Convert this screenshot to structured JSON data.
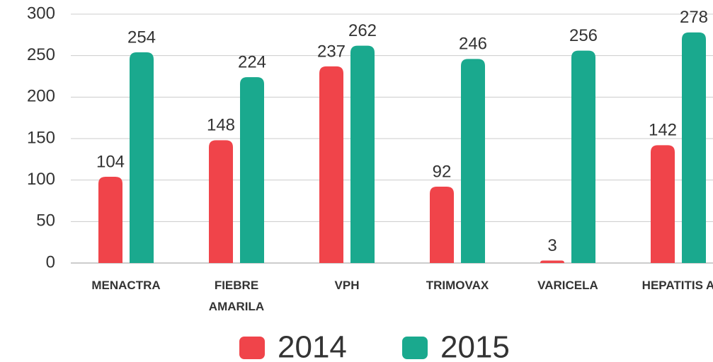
{
  "chart_data": {
    "type": "bar",
    "categories": [
      "MENACTRA",
      "FIEBRE\nAMARILA",
      "VPH",
      "TRIMOVAX",
      "VARICELA",
      "HEPATITIS A"
    ],
    "series": [
      {
        "name": "2014",
        "color": "#f0444a",
        "values": [
          104,
          148,
          237,
          92,
          3,
          142
        ]
      },
      {
        "name": "2015",
        "color": "#1aa98e",
        "values": [
          254,
          224,
          262,
          246,
          256,
          278
        ]
      }
    ],
    "ylim": [
      0,
      300
    ],
    "yticks": [
      0,
      50,
      100,
      150,
      200,
      250,
      300
    ],
    "grid": true,
    "legend": "bottom"
  }
}
